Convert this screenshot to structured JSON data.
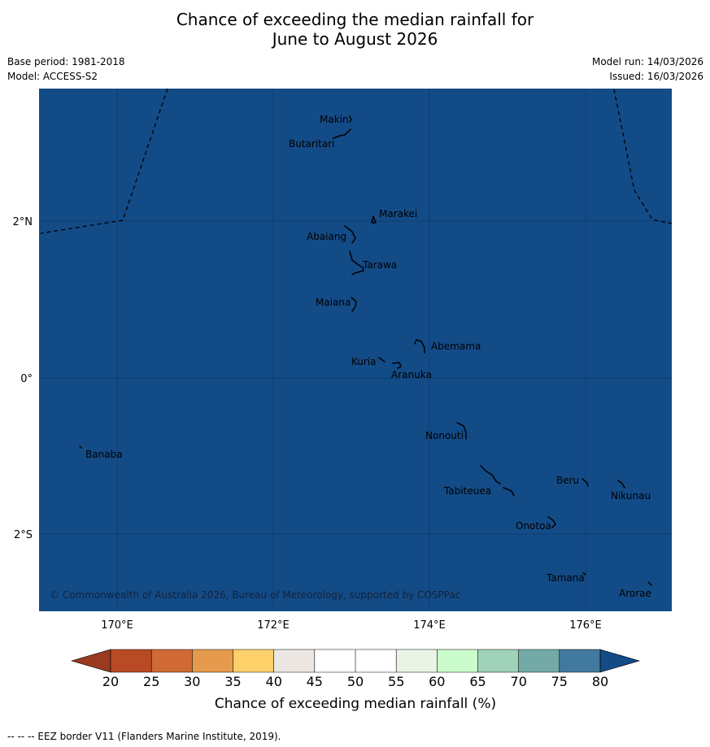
{
  "title_line1": "Chance of exceeding the median rainfall for",
  "title_line2": "June to August 2026",
  "meta": {
    "base_period": "Base period: 1981-2018",
    "model": "Model: ACCESS-S2",
    "model_run": "Model run: 14/03/2026",
    "issued": "Issued: 16/03/2026"
  },
  "map": {
    "background_color": "#134b87",
    "lon_ticks": [
      "170°E",
      "172°E",
      "174°E",
      "176°E"
    ],
    "lat_ticks": [
      "2°N",
      "0°",
      "2°S"
    ],
    "islands": [
      "Makin",
      "Butaritari",
      "Marakei",
      "Abaiang",
      "Tarawa",
      "Maiana",
      "Abemama",
      "Kuria",
      "Aranuka",
      "Nonouti",
      "Banaba",
      "Beru",
      "Tabiteuea",
      "Nikunau",
      "Onotoa",
      "Tamana",
      "Arorae"
    ],
    "copyright": "© Commonwealth of Australia 2026, Bureau of Meteorology, supported by COSPPac"
  },
  "colorbar": {
    "title": "Chance of exceeding median rainfall (%)",
    "ticks": [
      "20",
      "25",
      "30",
      "35",
      "40",
      "45",
      "50",
      "55",
      "60",
      "65",
      "70",
      "75",
      "80"
    ],
    "colors": {
      "below_20": "#9a3a1e",
      "c20_25": "#b84a26",
      "c25_30": "#d06a35",
      "c30_35": "#e59a4e",
      "c35_40": "#fdd06a",
      "c40_45": "#ece7e2",
      "c45_50": "#ffffff",
      "c50_55": "#ffffff",
      "c55_60": "#e9f4e6",
      "c60_65": "#cbfccb",
      "c65_70": "#a0d2b9",
      "c70_75": "#73aaa7",
      "c75_80": "#417a9e",
      "above_80": "#134b87"
    }
  },
  "footer": "--  --  -- EEZ border V11 (Flanders Marine Institute, 2019)."
}
